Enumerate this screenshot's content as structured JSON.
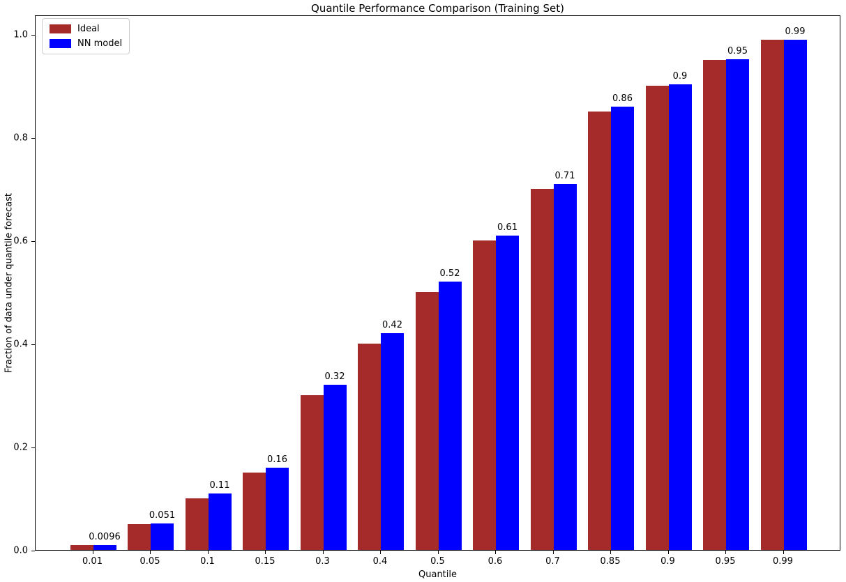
{
  "chart_data": {
    "type": "bar",
    "title": "Quantile Performance Comparison (Training Set)",
    "xlabel": "Quantile",
    "ylabel": "Fraction of data under quantile forecast",
    "categories": [
      "0.01",
      "0.05",
      "0.1",
      "0.15",
      "0.3",
      "0.4",
      "0.5",
      "0.6",
      "0.7",
      "0.85",
      "0.9",
      "0.95",
      "0.99"
    ],
    "series": [
      {
        "name": "Ideal",
        "color": "#a52a2a",
        "values": [
          0.01,
          0.05,
          0.1,
          0.15,
          0.3,
          0.4,
          0.5,
          0.6,
          0.7,
          0.85,
          0.9,
          0.95,
          0.99
        ]
      },
      {
        "name": "NN model",
        "color": "#0000ff",
        "values": [
          0.0096,
          0.051,
          0.11,
          0.16,
          0.32,
          0.42,
          0.52,
          0.61,
          0.71,
          0.86,
          0.903,
          0.951,
          0.99
        ]
      }
    ],
    "bar_labels": [
      "0.0096",
      "0.051",
      "0.11",
      "0.16",
      "0.32",
      "0.42",
      "0.52",
      "0.61",
      "0.71",
      "0.86",
      "0.9",
      "0.95",
      "0.99"
    ],
    "yticks": [
      "0.0",
      "0.2",
      "0.4",
      "0.6",
      "0.8",
      "1.0"
    ],
    "ylim": [
      0,
      1.038
    ],
    "bar_width_units": 0.4,
    "legend_position": "upper left",
    "grid": false
  }
}
